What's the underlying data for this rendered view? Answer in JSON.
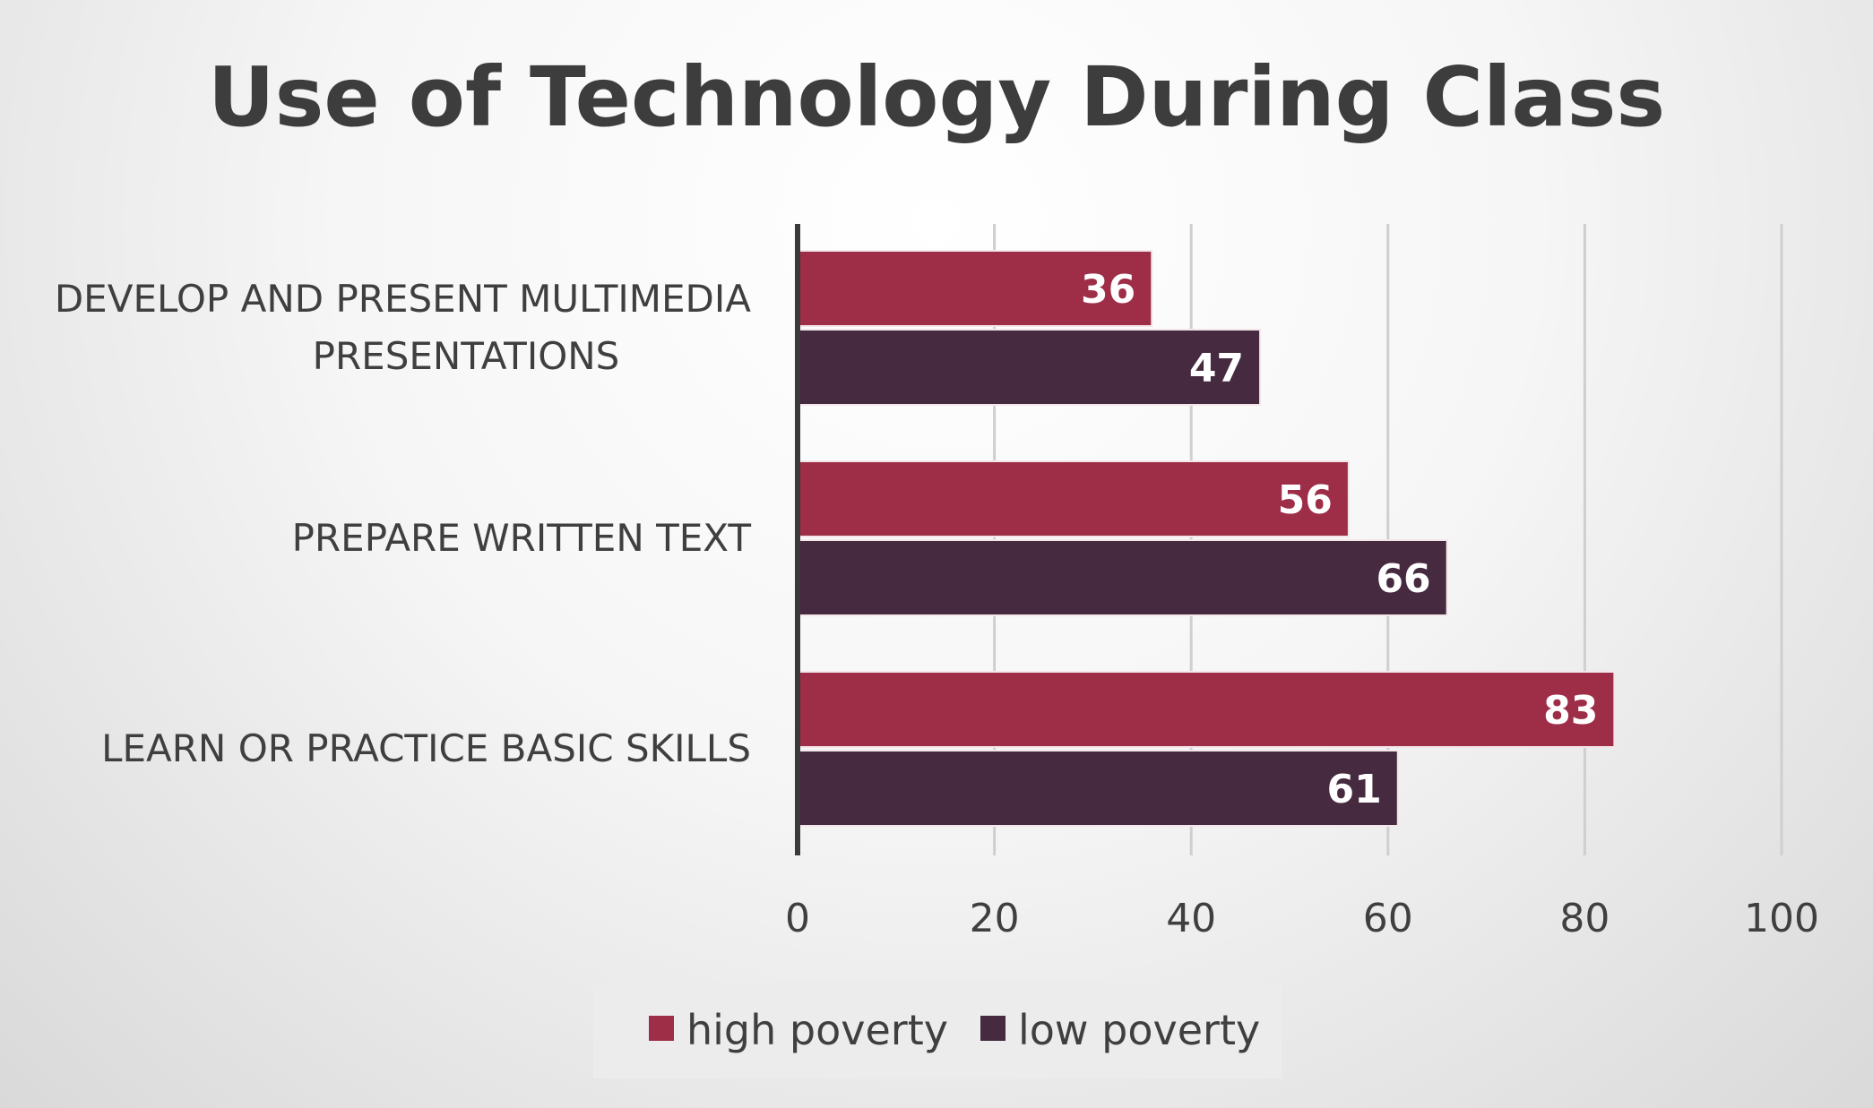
{
  "chart_data": {
    "type": "bar",
    "orientation": "horizontal",
    "title": "Use of Technology During Class",
    "categories": [
      [
        "DEVELOP AND PRESENT MULTIMEDIA",
        "PRESENTATIONS"
      ],
      [
        "PREPARE WRITTEN TEXT"
      ],
      [
        "LEARN OR PRACTICE BASIC SKILLS"
      ]
    ],
    "series": [
      {
        "name": "high poverty",
        "values": [
          36,
          56,
          83
        ],
        "color": "#9e2e48"
      },
      {
        "name": "low poverty",
        "values": [
          47,
          66,
          61
        ],
        "color": "#452a40"
      }
    ],
    "xlim": [
      0,
      100
    ],
    "xticks": [
      0,
      20,
      40,
      60,
      80,
      100
    ],
    "grid": true,
    "data_labels": true,
    "legend_position": "bottom"
  }
}
